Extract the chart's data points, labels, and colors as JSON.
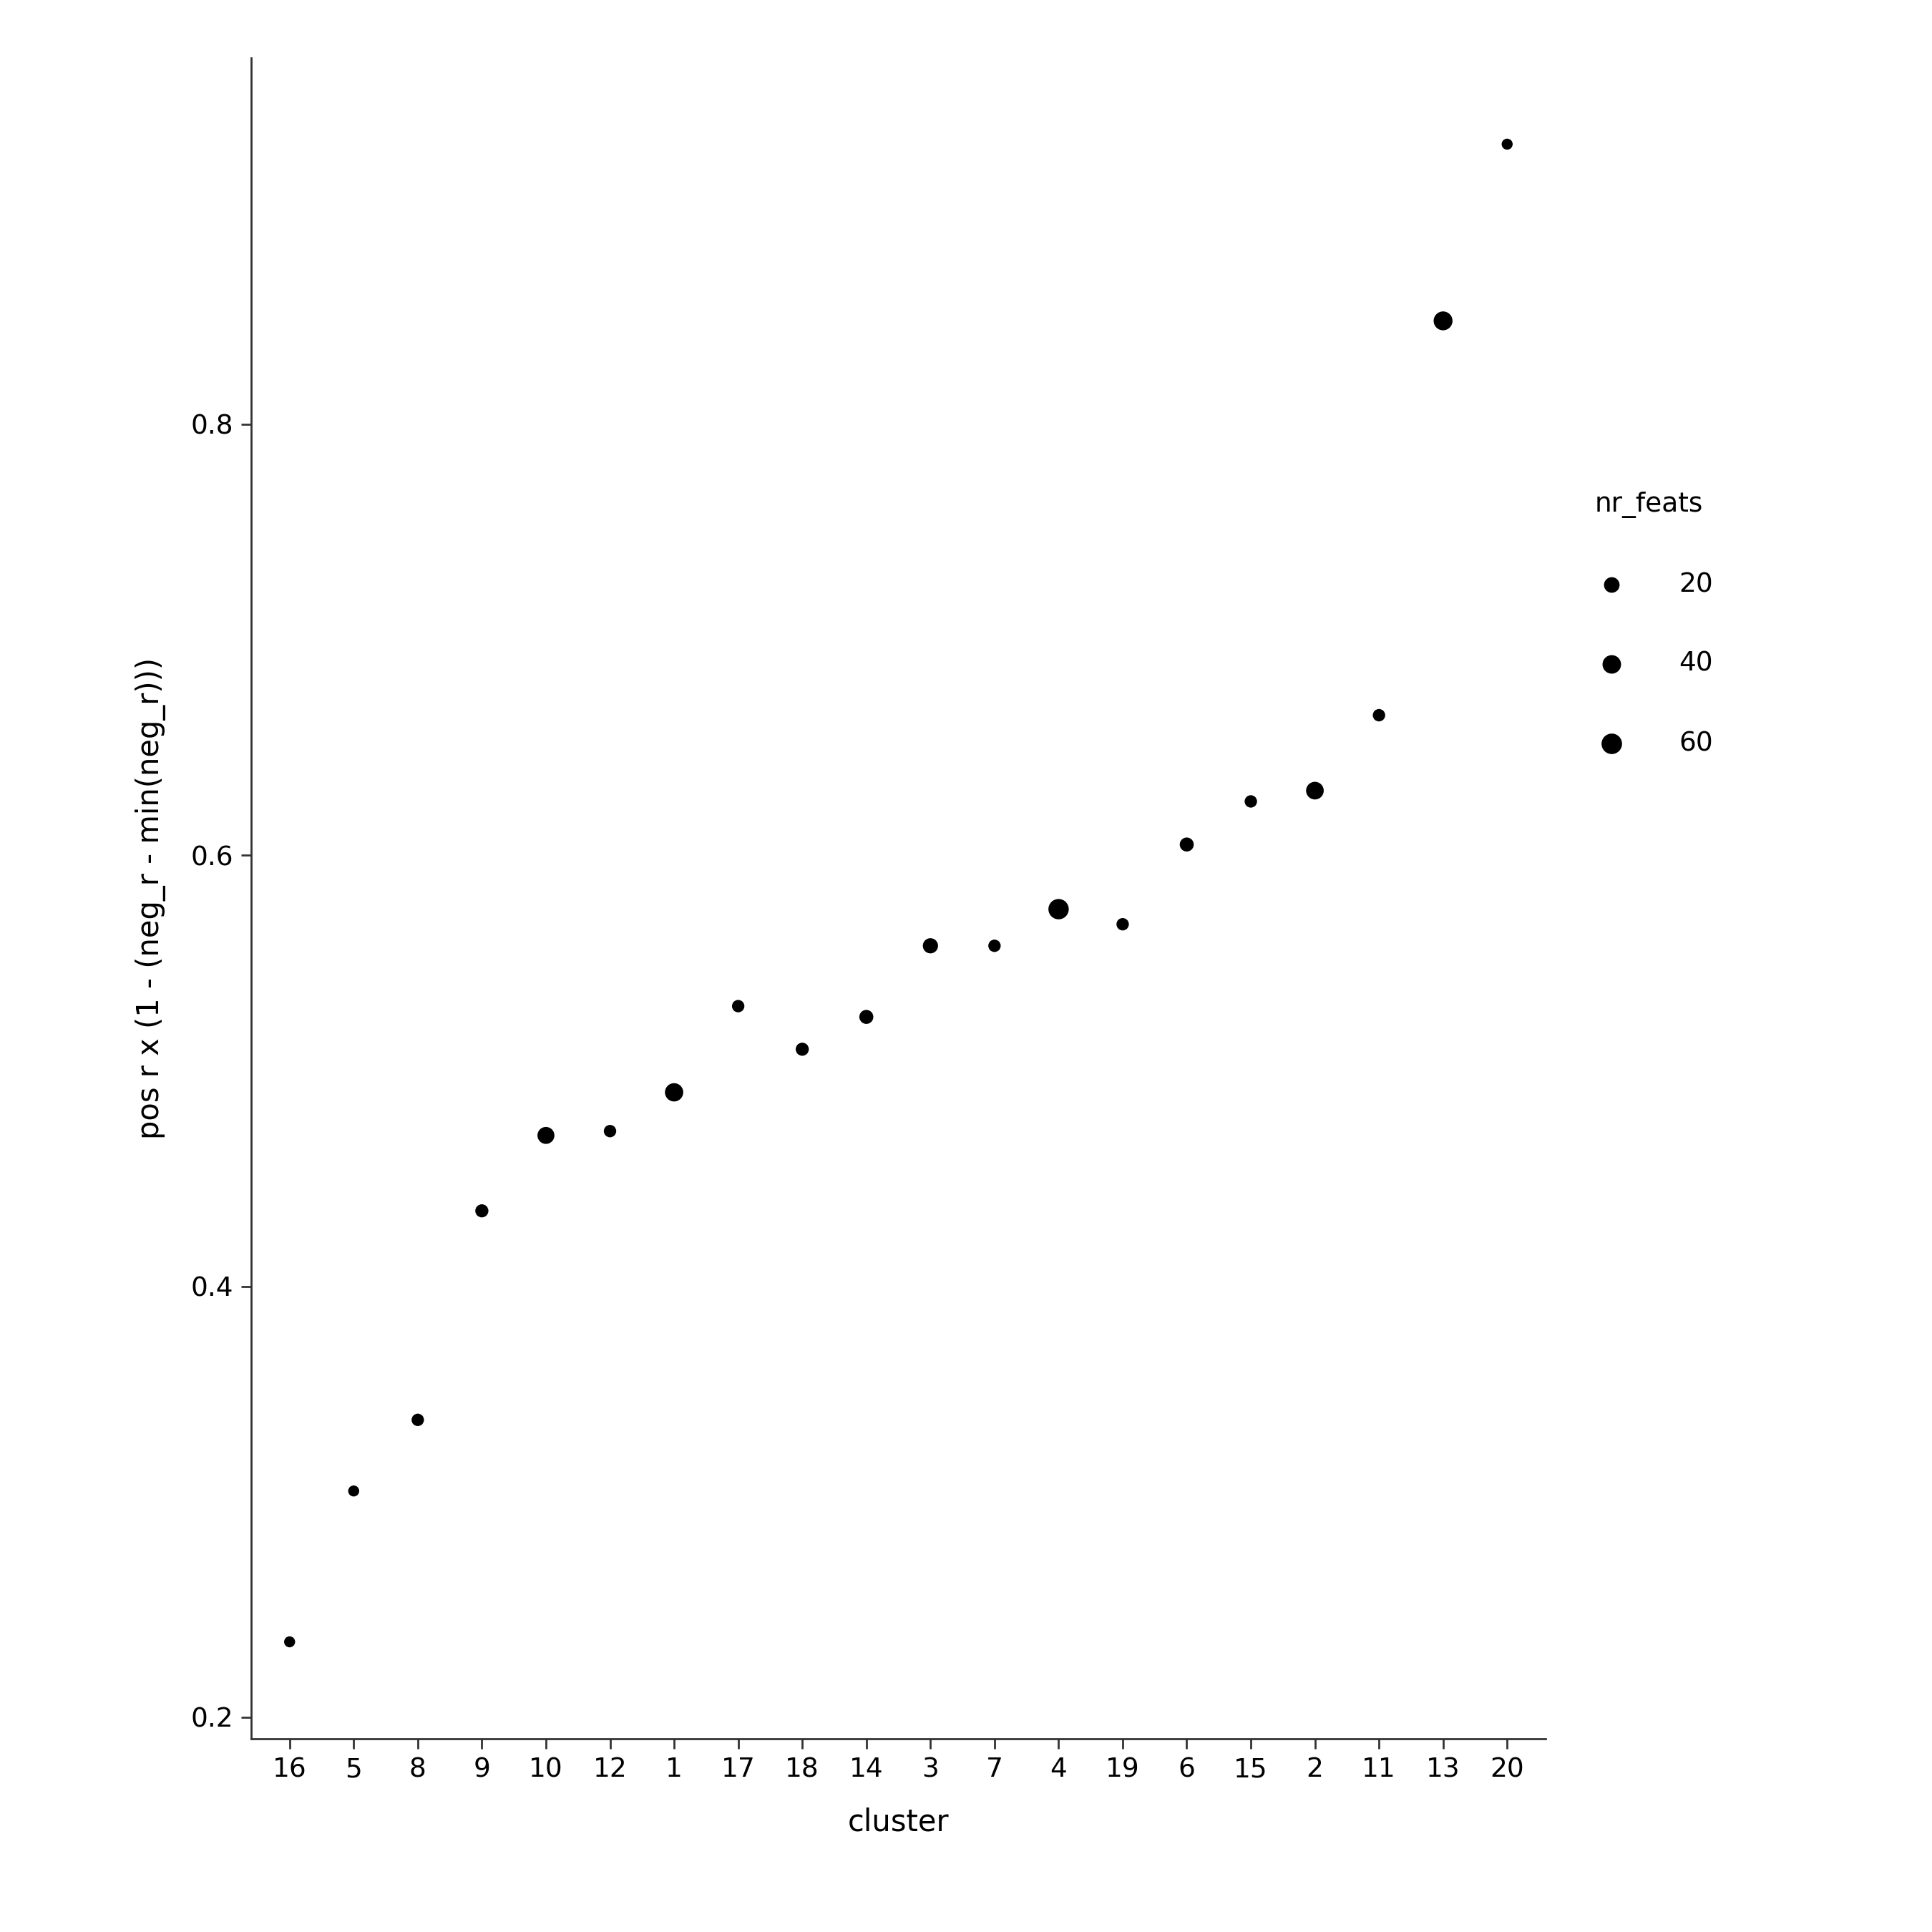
{
  "clusters": [
    "16",
    "5",
    "8",
    "9",
    "10",
    "12",
    "1",
    "17",
    "18",
    "14",
    "3",
    "7",
    "4",
    "19",
    "6",
    "15",
    "2",
    "11",
    "13",
    "20"
  ],
  "y_values": [
    0.235,
    0.305,
    0.338,
    0.435,
    0.47,
    0.472,
    0.49,
    0.53,
    0.51,
    0.525,
    0.558,
    0.558,
    0.575,
    0.568,
    0.605,
    0.625,
    0.63,
    0.665,
    0.848,
    0.93
  ],
  "nr_feats": [
    5,
    5,
    8,
    10,
    28,
    8,
    38,
    8,
    10,
    13,
    18,
    8,
    58,
    8,
    13,
    8,
    33,
    8,
    43,
    5
  ],
  "dot_color": "#000000",
  "background_color": "#ffffff",
  "xlabel": "cluster",
  "ylabel": "pos r x (1 - (neg_r - min(neg_r)))",
  "ylim": [
    0.19,
    0.97
  ],
  "yticks": [
    0.2,
    0.4,
    0.6,
    0.8
  ],
  "legend_title": "nr_feats",
  "legend_sizes": [
    20,
    40,
    60
  ],
  "size_scale": 55,
  "title_fontsize": 28,
  "axis_fontsize": 30,
  "tick_fontsize": 27,
  "legend_fontsize": 27
}
